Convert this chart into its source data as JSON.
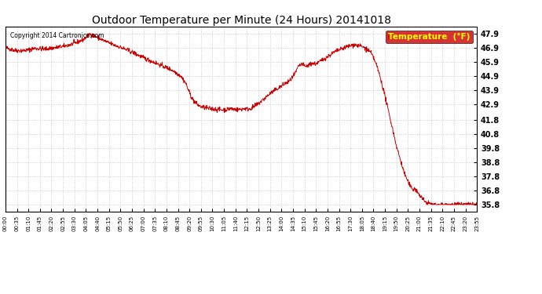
{
  "title": "Outdoor Temperature per Minute (24 Hours) 20141018",
  "copyright": "Copyright 2014 Cartronics.com",
  "legend_label": "Temperature  (°F)",
  "line_color": "#cc0000",
  "background_color": "#ffffff",
  "grid_color": "#bbbbbb",
  "legend_bg": "#cc0000",
  "legend_text_color": "#ffff00",
  "y_ticks": [
    35.8,
    36.8,
    37.8,
    38.8,
    39.8,
    40.8,
    41.8,
    42.9,
    43.9,
    44.9,
    45.9,
    46.9,
    47.9
  ],
  "x_tick_labels": [
    "00:00",
    "00:35",
    "01:10",
    "01:45",
    "02:20",
    "02:55",
    "03:30",
    "04:05",
    "04:40",
    "05:15",
    "05:50",
    "06:25",
    "07:00",
    "07:35",
    "08:10",
    "08:45",
    "09:20",
    "09:55",
    "10:30",
    "11:05",
    "11:40",
    "12:15",
    "12:50",
    "13:25",
    "14:00",
    "14:35",
    "15:10",
    "15:45",
    "16:20",
    "16:55",
    "17:30",
    "18:05",
    "18:40",
    "19:15",
    "19:50",
    "20:25",
    "21:00",
    "21:35",
    "22:10",
    "22:45",
    "23:20",
    "23:55"
  ],
  "curve_keypoints": [
    [
      0,
      46.9
    ],
    [
      30,
      46.7
    ],
    [
      60,
      46.7
    ],
    [
      90,
      46.8
    ],
    [
      120,
      46.8
    ],
    [
      150,
      46.9
    ],
    [
      180,
      46.9
    ],
    [
      210,
      47.1
    ],
    [
      240,
      47.3
    ],
    [
      260,
      47.9
    ],
    [
      270,
      47.8
    ],
    [
      300,
      47.5
    ],
    [
      330,
      47.2
    ],
    [
      360,
      46.9
    ],
    [
      390,
      46.6
    ],
    [
      420,
      46.3
    ],
    [
      450,
      46.0
    ],
    [
      480,
      45.7
    ],
    [
      510,
      45.4
    ],
    [
      540,
      45.1
    ],
    [
      560,
      44.5
    ],
    [
      580,
      43.8
    ],
    [
      600,
      43.0
    ],
    [
      620,
      42.8
    ],
    [
      640,
      42.6
    ],
    [
      560,
      44.4
    ],
    [
      570,
      43.5
    ],
    [
      580,
      43.0
    ],
    [
      590,
      42.8
    ],
    [
      560,
      44.3
    ],
    [
      575,
      43.6
    ],
    [
      585,
      43.1
    ],
    [
      595,
      42.8
    ],
    [
      620,
      42.8
    ],
    [
      640,
      42.6
    ],
    [
      660,
      42.5
    ],
    [
      680,
      42.5
    ],
    [
      700,
      42.6
    ],
    [
      720,
      42.7
    ],
    [
      730,
      42.6
    ],
    [
      740,
      42.5
    ],
    [
      760,
      42.9
    ],
    [
      780,
      43.0
    ],
    [
      790,
      42.8
    ],
    [
      800,
      42.9
    ],
    [
      820,
      43.5
    ],
    [
      840,
      44.0
    ],
    [
      860,
      44.3
    ],
    [
      880,
      44.5
    ],
    [
      900,
      44.8
    ],
    [
      910,
      45.3
    ],
    [
      920,
      45.7
    ],
    [
      930,
      45.5
    ],
    [
      940,
      45.6
    ],
    [
      950,
      45.8
    ],
    [
      960,
      45.8
    ],
    [
      970,
      45.7
    ],
    [
      980,
      45.9
    ],
    [
      990,
      46.0
    ],
    [
      1000,
      46.2
    ],
    [
      1010,
      46.4
    ],
    [
      1020,
      46.6
    ],
    [
      1030,
      46.7
    ],
    [
      1040,
      46.8
    ],
    [
      1050,
      46.9
    ],
    [
      1060,
      47.0
    ],
    [
      1070,
      47.0
    ],
    [
      1080,
      47.1
    ],
    [
      1090,
      47.0
    ],
    [
      1100,
      46.9
    ],
    [
      1110,
      46.5
    ],
    [
      1120,
      46.0
    ],
    [
      1130,
      45.5
    ],
    [
      1140,
      44.5
    ],
    [
      1150,
      43.5
    ],
    [
      1160,
      42.5
    ],
    [
      1170,
      41.5
    ],
    [
      1180,
      40.5
    ],
    [
      1190,
      39.5
    ],
    [
      1200,
      38.8
    ],
    [
      1210,
      38.0
    ],
    [
      1220,
      37.5
    ],
    [
      1230,
      37.0
    ],
    [
      1240,
      36.8
    ],
    [
      1250,
      36.5
    ],
    [
      1260,
      36.2
    ],
    [
      1270,
      36.0
    ],
    [
      1280,
      35.9
    ],
    [
      1290,
      35.8
    ],
    [
      1300,
      35.8
    ],
    [
      1320,
      35.8
    ],
    [
      1340,
      35.8
    ],
    [
      1360,
      35.8
    ],
    [
      1380,
      35.8
    ],
    [
      1400,
      35.8
    ],
    [
      1420,
      35.8
    ],
    [
      1439,
      35.8
    ]
  ]
}
